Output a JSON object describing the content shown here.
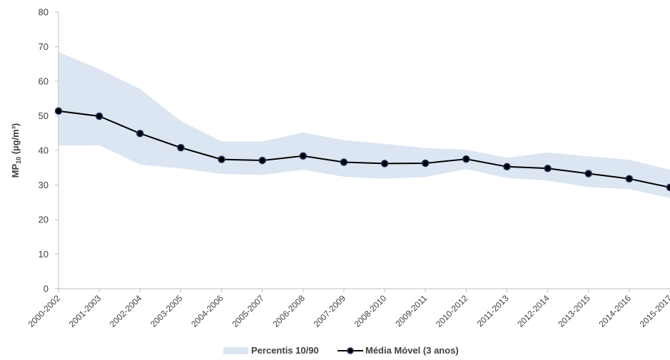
{
  "chart_data": {
    "type": "line",
    "ylabel_main": "MP",
    "ylabel_sub": "10",
    "ylabel_rest": " (µg/m³)",
    "ylim": [
      0,
      80
    ],
    "yticks": [
      "0",
      "10",
      "20",
      "30",
      "40",
      "50",
      "60",
      "70",
      "80"
    ],
    "grid": false,
    "legend_position": "bottom",
    "categories": [
      "2000-2002",
      "2001-2003",
      "2002-2004",
      "2003-2005",
      "2004-2006",
      "2005-2007",
      "2006-2008",
      "2007-2009",
      "2008-2010",
      "2009-2011",
      "2010-2012",
      "2011-2013",
      "2012-2014",
      "2013-2015",
      "2014-2016",
      "2015-2017"
    ],
    "band": {
      "name": "Percentis 10/90",
      "color": "#dce6f2",
      "upper": [
        68.5,
        63.5,
        57.8,
        48.5,
        42.6,
        42.6,
        45.2,
        43.0,
        41.9,
        40.7,
        40.2,
        37.9,
        39.4,
        38.3,
        37.3,
        34.4
      ],
      "lower": [
        41.4,
        41.5,
        35.9,
        34.8,
        33.2,
        32.9,
        34.4,
        32.4,
        31.8,
        32.3,
        34.6,
        32.0,
        31.3,
        29.4,
        28.8,
        26.2
      ]
    },
    "series": [
      {
        "name": "Média Móvel (3 anos)",
        "color": "#000000",
        "marker_color": "#1f3864",
        "values": [
          51.4,
          49.9,
          44.9,
          40.8,
          37.4,
          37.1,
          38.4,
          36.6,
          36.2,
          36.3,
          37.5,
          35.3,
          34.8,
          33.3,
          31.8,
          29.3
        ]
      }
    ]
  }
}
